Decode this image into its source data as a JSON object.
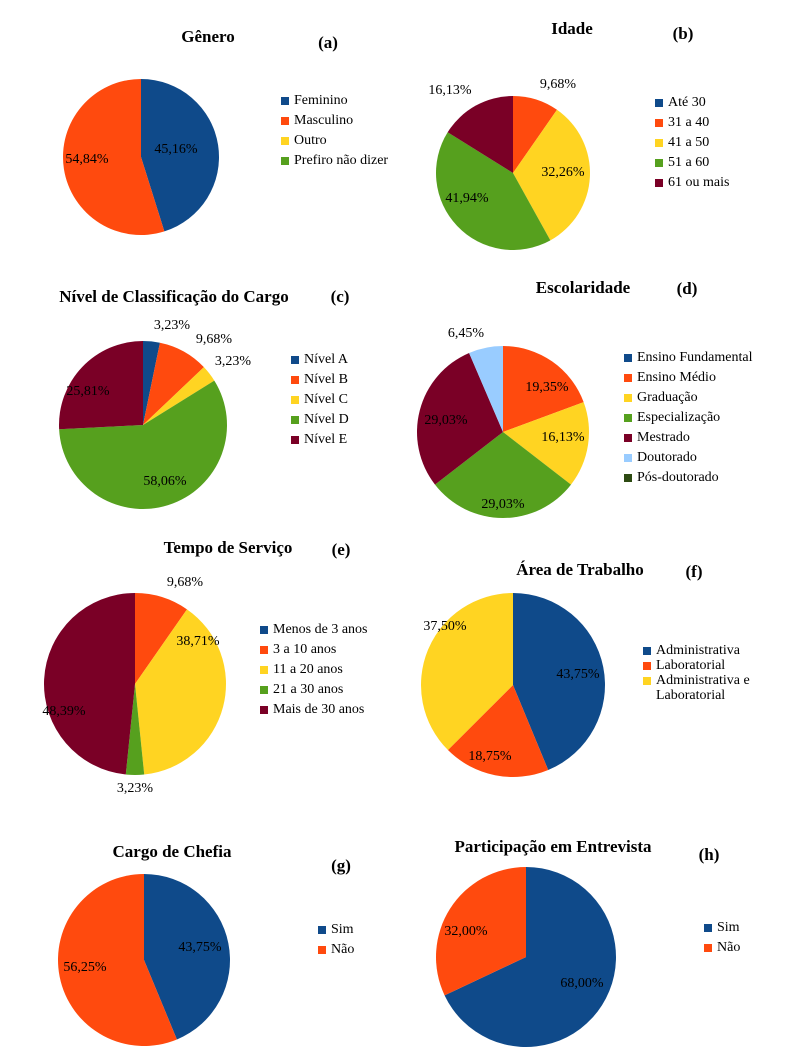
{
  "chart_data": [
    {
      "type": "pie",
      "title": "Gênero",
      "panel_label": "(a)",
      "categories": [
        "Feminino",
        "Masculino",
        "Outro",
        "Prefiro não dizer"
      ],
      "values": [
        45.16,
        54.84,
        0,
        0
      ],
      "value_labels": [
        "45,16%",
        "54,84%",
        null,
        null
      ],
      "colors": [
        "#0f4a8a",
        "#ff4a0e",
        "#ffd422",
        "#56a01e"
      ]
    },
    {
      "type": "pie",
      "title": "Idade",
      "panel_label": "(b)",
      "categories": [
        "Até 30",
        "31 a 40",
        "41 a 50",
        "51 a 60",
        "61 ou mais"
      ],
      "values": [
        0,
        9.68,
        32.26,
        41.94,
        16.13
      ],
      "value_labels": [
        null,
        "9,68%",
        "32,26%",
        "41,94%",
        "16,13%"
      ],
      "colors": [
        "#0f4a8a",
        "#ff4a0e",
        "#ffd422",
        "#56a01e",
        "#7a0026"
      ]
    },
    {
      "type": "pie",
      "title": "Nível de Classificação do Cargo",
      "panel_label": "(c)",
      "categories": [
        "Nível A",
        "Nível B",
        "Nível C",
        "Nível D",
        "Nível E"
      ],
      "values": [
        3.23,
        9.68,
        3.23,
        58.06,
        25.81
      ],
      "value_labels": [
        "3,23%",
        "9,68%",
        "3,23%",
        "58,06%",
        "25,81%"
      ],
      "colors": [
        "#0f4a8a",
        "#ff4a0e",
        "#ffd422",
        "#56a01e",
        "#7a0026"
      ]
    },
    {
      "type": "pie",
      "title": "Escolaridade",
      "panel_label": "(d)",
      "categories": [
        "Ensino Fundamental",
        "Ensino Médio",
        "Graduação",
        "Especialização",
        "Mestrado",
        "Doutorado",
        "Pós-doutorado"
      ],
      "values": [
        0,
        19.35,
        16.13,
        29.03,
        29.03,
        6.45,
        0
      ],
      "value_labels": [
        null,
        "19,35%",
        "16,13%",
        "29,03%",
        "29,03%",
        "6,45%",
        null
      ],
      "colors": [
        "#0f4a8a",
        "#ff4a0e",
        "#ffd422",
        "#56a01e",
        "#7a0026",
        "#99ccff",
        "#2d4a12"
      ]
    },
    {
      "type": "pie",
      "title": "Tempo de Serviço",
      "panel_label": "(e)",
      "categories": [
        "Menos de 3 anos",
        "3 a 10 anos",
        "11 a 20 anos",
        "21 a 30 anos",
        "Mais de 30 anos"
      ],
      "values": [
        0,
        9.68,
        38.71,
        3.23,
        48.39
      ],
      "value_labels": [
        null,
        "9,68%",
        "38,71%",
        "3,23%",
        "48,39%"
      ],
      "colors": [
        "#0f4a8a",
        "#ff4a0e",
        "#ffd422",
        "#56a01e",
        "#7a0026"
      ]
    },
    {
      "type": "pie",
      "title": "Área de Trabalho",
      "panel_label": "(f)",
      "categories": [
        "Administrativa",
        "Laboratorial",
        "Administrativa e Laboratorial"
      ],
      "values": [
        43.75,
        18.75,
        37.5
      ],
      "value_labels": [
        "43,75%",
        "18,75%",
        "37,50%"
      ],
      "colors": [
        "#0f4a8a",
        "#ff4a0e",
        "#ffd422"
      ]
    },
    {
      "type": "pie",
      "title": "Cargo de Chefia",
      "panel_label": "(g)",
      "categories": [
        "Sim",
        "Não"
      ],
      "values": [
        43.75,
        56.25
      ],
      "value_labels": [
        "43,75%",
        "56,25%"
      ],
      "colors": [
        "#0f4a8a",
        "#ff4a0e"
      ]
    },
    {
      "type": "pie",
      "title": "Participação em Entrevista",
      "panel_label": "(h)",
      "categories": [
        "Sim",
        "Não"
      ],
      "values": [
        68,
        32
      ],
      "value_labels": [
        "68,00%",
        "32,00%"
      ],
      "colors": [
        "#0f4a8a",
        "#ff4a0e"
      ]
    }
  ]
}
